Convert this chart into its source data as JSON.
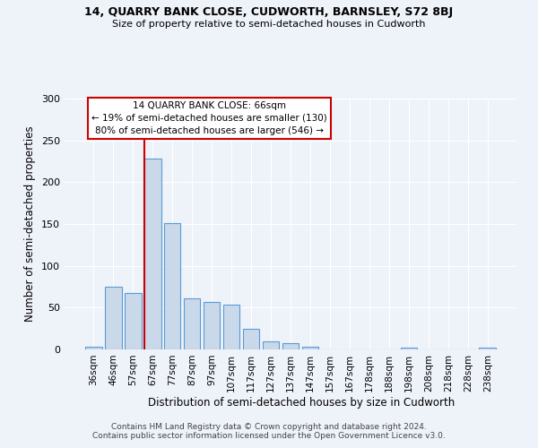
{
  "title1": "14, QUARRY BANK CLOSE, CUDWORTH, BARNSLEY, S72 8BJ",
  "title2": "Size of property relative to semi-detached houses in Cudworth",
  "xlabel": "Distribution of semi-detached houses by size in Cudworth",
  "ylabel": "Number of semi-detached properties",
  "annotation_line1": "14 QUARRY BANK CLOSE: 66sqm",
  "annotation_line2": "← 19% of semi-detached houses are smaller (130)",
  "annotation_line3": "80% of semi-detached houses are larger (546) →",
  "footer1": "Contains HM Land Registry data © Crown copyright and database right 2024.",
  "footer2": "Contains public sector information licensed under the Open Government Licence v3.0.",
  "bins": [
    "36sqm",
    "46sqm",
    "57sqm",
    "67sqm",
    "77sqm",
    "87sqm",
    "97sqm",
    "107sqm",
    "117sqm",
    "127sqm",
    "137sqm",
    "147sqm",
    "157sqm",
    "167sqm",
    "178sqm",
    "188sqm",
    "198sqm",
    "208sqm",
    "218sqm",
    "228sqm",
    "238sqm"
  ],
  "values": [
    3,
    75,
    67,
    228,
    151,
    61,
    57,
    54,
    25,
    10,
    7,
    3,
    0,
    0,
    0,
    0,
    2,
    0,
    0,
    0,
    2
  ],
  "bar_color": "#c9d9ea",
  "bar_edge_color": "#5b9bd5",
  "ylim": [
    0,
    300
  ],
  "yticks": [
    0,
    50,
    100,
    150,
    200,
    250,
    300
  ],
  "annotation_box_color": "#ffffff",
  "annotation_box_edge": "#cc0000",
  "red_line_color": "#cc0000",
  "bg_color": "#eef2f9",
  "title1_fontsize": 9,
  "title2_fontsize": 8
}
